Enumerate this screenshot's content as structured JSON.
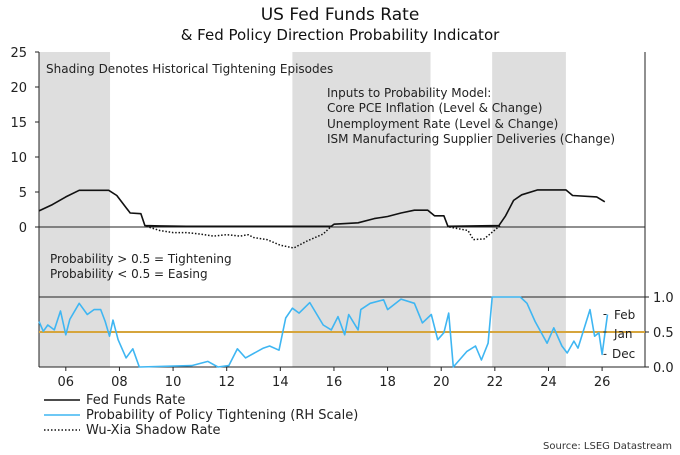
{
  "chart_data": {
    "type": "line",
    "title": "US Fed Funds Rate",
    "subtitle": "& Fed Policy Direction Probability Indicator",
    "source": "Source: LSEG Datastream",
    "annotations": {
      "shading_note": "Shading Denotes Historical Tightening Episodes",
      "inputs": [
        "Inputs to Probability Model:",
        "Core PCE Inflation (Level & Change)",
        "Unemployment Rate (Level & Change)",
        "ISM Manufacturing Supplier Deliveries (Change)"
      ],
      "prob_rules": [
        "Probability > 0.5 = Tightening",
        "Probability < 0.5 = Easing"
      ],
      "month_labels": [
        {
          "label": "Feb",
          "value": 0.75
        },
        {
          "label": "Jan",
          "value": 0.5
        },
        {
          "label": "Dec",
          "value": 0.18
        }
      ]
    },
    "x_range": [
      2005,
      2027.6
    ],
    "x_ticks": [
      {
        "v": 2006,
        "l": "06"
      },
      {
        "v": 2008,
        "l": "08"
      },
      {
        "v": 2010,
        "l": "10"
      },
      {
        "v": 2012,
        "l": "12"
      },
      {
        "v": 2014,
        "l": "14"
      },
      {
        "v": 2016,
        "l": "16"
      },
      {
        "v": 2018,
        "l": "18"
      },
      {
        "v": 2020,
        "l": "20"
      },
      {
        "v": 2022,
        "l": "22"
      },
      {
        "v": 2024,
        "l": "24"
      },
      {
        "v": 2026,
        "l": "26"
      }
    ],
    "left_axis": {
      "range": [
        0,
        25
      ],
      "ticks": [
        "0",
        "5",
        "10",
        "15",
        "20",
        "25"
      ]
    },
    "right_axis": {
      "range": [
        0,
        1
      ],
      "ticks": [
        "0.0",
        "0.5",
        "1.0"
      ]
    },
    "shading": [
      [
        2005,
        2007.65
      ],
      [
        2014.45,
        2019.6
      ],
      [
        2021.9,
        2024.65
      ]
    ],
    "threshold": 0.5,
    "colors": {
      "fed": "#111111",
      "prob": "#3fb6f2",
      "shadow": "#111111",
      "threshold": "#d6a53c",
      "shade": "#dedede"
    },
    "series": [
      {
        "name": "Fed Funds Rate",
        "axis": "left",
        "style": "solid",
        "x": [
          2005.0,
          2005.5,
          2006.0,
          2006.5,
          2007.6,
          2007.9,
          2008.2,
          2008.4,
          2008.8,
          2008.95,
          2009.5,
          2010.5,
          2012.0,
          2013.5,
          2015.9,
          2016.0,
          2016.9,
          2017.5,
          2018.0,
          2018.5,
          2019.0,
          2019.5,
          2019.75,
          2020.1,
          2020.25,
          2022.15,
          2022.4,
          2022.7,
          2023.0,
          2023.6,
          2024.65,
          2024.9,
          2025.8,
          2026.1
        ],
        "y": [
          2.3,
          3.2,
          4.3,
          5.25,
          5.25,
          4.5,
          3.0,
          2.0,
          1.9,
          0.2,
          0.15,
          0.1,
          0.1,
          0.1,
          0.1,
          0.4,
          0.6,
          1.2,
          1.5,
          2.0,
          2.4,
          2.4,
          1.6,
          1.6,
          0.1,
          0.2,
          1.6,
          3.8,
          4.6,
          5.3,
          5.3,
          4.5,
          4.3,
          3.6
        ]
      },
      {
        "name": "Probability of Policy Tightening (RH Scale)",
        "axis": "right",
        "style": "solid",
        "x": [
          2005.0,
          2005.16,
          2005.33,
          2005.57,
          2005.8,
          2006.0,
          2006.15,
          2006.5,
          2006.8,
          2007.05,
          2007.3,
          2007.47,
          2007.63,
          2007.76,
          2007.95,
          2008.25,
          2008.5,
          2008.74,
          2010.7,
          2011.3,
          2011.67,
          2012.08,
          2012.4,
          2012.7,
          2013.37,
          2013.6,
          2013.95,
          2014.2,
          2014.45,
          2014.7,
          2015.1,
          2015.6,
          2015.9,
          2016.15,
          2016.4,
          2016.55,
          2016.9,
          2017.0,
          2017.35,
          2017.85,
          2018.0,
          2018.5,
          2019.0,
          2019.3,
          2019.63,
          2019.87,
          2020.1,
          2020.28,
          2020.45,
          2020.95,
          2021.28,
          2021.5,
          2021.75,
          2021.9,
          2022.95,
          2023.2,
          2023.5,
          2023.95,
          2024.2,
          2024.5,
          2024.7,
          2024.95,
          2025.1,
          2025.55,
          2025.72,
          2025.88,
          2026.0,
          2026.2
        ],
        "y": [
          0.65,
          0.51,
          0.6,
          0.53,
          0.8,
          0.46,
          0.68,
          0.91,
          0.75,
          0.82,
          0.82,
          0.65,
          0.44,
          0.67,
          0.39,
          0.13,
          0.26,
          0.0,
          0.02,
          0.08,
          0.0,
          0.02,
          0.26,
          0.13,
          0.27,
          0.3,
          0.24,
          0.7,
          0.84,
          0.77,
          0.92,
          0.6,
          0.53,
          0.72,
          0.46,
          0.75,
          0.53,
          0.82,
          0.91,
          0.96,
          0.82,
          0.97,
          0.91,
          0.63,
          0.75,
          0.39,
          0.49,
          0.77,
          0.0,
          0.22,
          0.3,
          0.1,
          0.34,
          1.0,
          1.0,
          0.91,
          0.65,
          0.34,
          0.56,
          0.3,
          0.2,
          0.37,
          0.27,
          0.82,
          0.44,
          0.49,
          0.18,
          0.75
        ]
      },
      {
        "name": "Wu-Xia Shadow Rate",
        "axis": "left",
        "style": "dotted",
        "x": [
          2009.0,
          2009.5,
          2010.0,
          2010.5,
          2011.0,
          2011.5,
          2012.0,
          2012.5,
          2012.8,
          2013.0,
          2013.5,
          2014.0,
          2014.5,
          2015.0,
          2015.6,
          2015.9,
          null,
          2020.3,
          2021.0,
          2021.2,
          2021.6,
          2022.2
        ],
        "y": [
          0.1,
          -0.5,
          -0.8,
          -0.8,
          -1.0,
          -1.3,
          -1.1,
          -1.3,
          -1.1,
          -1.5,
          -1.8,
          -2.6,
          -3.0,
          -2.0,
          -1.0,
          0.1,
          null,
          0.0,
          -0.5,
          -1.8,
          -1.7,
          0.2
        ]
      }
    ],
    "legend": {
      "placement": "bottom-left",
      "entries": [
        "Fed Funds Rate",
        "Probability of Policy Tightening (RH Scale)",
        "Wu-Xia Shadow Rate"
      ]
    }
  }
}
